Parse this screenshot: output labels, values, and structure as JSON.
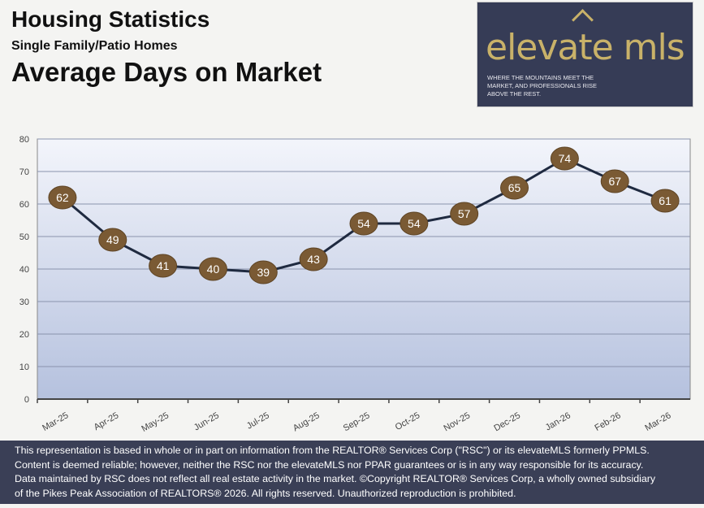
{
  "header": {
    "title": "Housing Statistics",
    "subtitle": "Single Family/Patio Homes",
    "metric": "Average Days on Market"
  },
  "logo": {
    "name": "elevate mls",
    "tagline": "WHERE THE MOUNTAINS MEET THE MARKET, AND PROFESSIONALS RISE ABOVE THE REST.",
    "colors": {
      "background": "#363c56",
      "gold": "#c9b269"
    }
  },
  "chart_data": {
    "type": "line",
    "categories": [
      "Mar-25",
      "Apr-25",
      "May-25",
      "Jun-25",
      "Jul-25",
      "Aug-25",
      "Sep-25",
      "Oct-25",
      "Nov-25",
      "Dec-25",
      "Jan-26",
      "Feb-26",
      "Mar-26"
    ],
    "values": [
      62,
      49,
      41,
      40,
      39,
      43,
      54,
      54,
      57,
      65,
      74,
      67,
      61
    ],
    "ylim": [
      0,
      80
    ],
    "yticks": [
      0,
      10,
      20,
      30,
      40,
      50,
      60,
      70,
      80
    ],
    "grid": true,
    "line_color": "#1f2a40",
    "marker_color": "#7a5a34"
  },
  "footer": {
    "lines": [
      "This representation is based in whole or in part on information from the REALTOR® Services Corp (\"RSC\") or its elevateMLS formerly PPMLS.",
      "Content is deemed reliable; however, neither the RSC nor the elevateMLS nor PPAR guarantees or is in any way responsible for its accuracy.",
      "Data maintained by RSC does not reflect all real estate activity in the market.  ©Copyright REALTOR® Services Corp, a wholly owned subsidiary",
      "of the Pikes Peak Association of REALTORS® 2026. All rights reserved. Unauthorized reproduction is prohibited."
    ]
  }
}
